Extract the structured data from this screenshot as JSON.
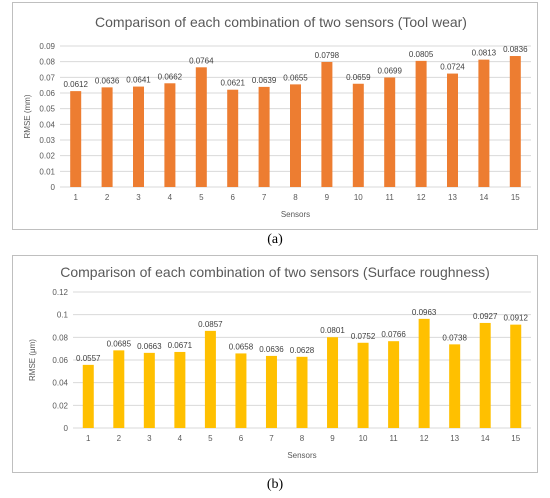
{
  "chart_data": [
    {
      "type": "bar",
      "title": "Comparison of each combination of two sensors (Tool wear)",
      "xlabel": "Sensors",
      "ylabel": "RMSE (mm)",
      "categories": [
        "1",
        "2",
        "3",
        "4",
        "5",
        "6",
        "7",
        "8",
        "9",
        "10",
        "11",
        "12",
        "13",
        "14",
        "15"
      ],
      "values": [
        0.0612,
        0.0636,
        0.0641,
        0.0662,
        0.0764,
        0.0621,
        0.0639,
        0.0655,
        0.0798,
        0.0659,
        0.0699,
        0.0805,
        0.0724,
        0.0813,
        0.0836
      ],
      "data_labels": [
        "0.0612",
        "0.0636",
        "0.0641",
        "0.0662",
        "0.0764",
        "0.0621",
        "0.0639",
        "0.0655",
        "0.0798",
        "0.0659",
        "0.0699",
        "0.0805",
        "0.0724",
        "0.0813",
        "0.0836"
      ],
      "y_ticks": [
        "0",
        "0.01",
        "0.02",
        "0.03",
        "0.04",
        "0.05",
        "0.06",
        "0.07",
        "0.08",
        "0.09"
      ],
      "ylim": [
        0,
        0.09
      ],
      "grid": true,
      "color": "#ED7D31"
    },
    {
      "type": "bar",
      "title": "Comparison of each combination of two sensors (Surface roughness)",
      "xlabel": "Sensors",
      "ylabel": "RMSE (μm)",
      "categories": [
        "1",
        "2",
        "3",
        "4",
        "5",
        "6",
        "7",
        "8",
        "9",
        "10",
        "11",
        "12",
        "13",
        "14",
        "15"
      ],
      "values": [
        0.0557,
        0.0685,
        0.0663,
        0.0671,
        0.0857,
        0.0658,
        0.0636,
        0.0628,
        0.0801,
        0.0752,
        0.0766,
        0.0963,
        0.0738,
        0.0927,
        0.0912
      ],
      "data_labels": [
        "0.0557",
        "0.0685",
        "0.0663",
        "0.0671",
        "0.0857",
        "0.0658",
        "0.0636",
        "0.0628",
        "0.0801",
        "0.0752",
        "0.0766",
        "0.0963",
        "0.0738",
        "0.0927",
        "0.0912"
      ],
      "y_ticks": [
        "0",
        "0.02",
        "0.04",
        "0.06",
        "0.08",
        "0.1",
        "0.12"
      ],
      "ylim": [
        0,
        0.12
      ],
      "grid": true,
      "color": "#FFC000"
    }
  ],
  "captions": {
    "a": "(a)",
    "b": "(b)"
  },
  "colors": {
    "grid": "#d9d9d9",
    "text": "#595959"
  }
}
